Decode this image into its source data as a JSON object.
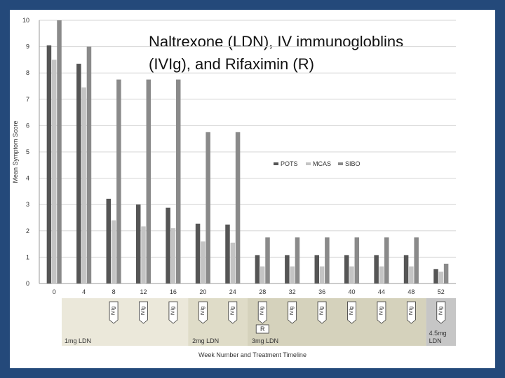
{
  "title_lines": [
    "Naltrexone (LDN), IV immunogloblins",
    "(IVIg), and Rifaximin (R)"
  ],
  "chart_data": {
    "type": "bar",
    "ylabel": "Mean Symptom Score",
    "xlabel": "Week Number and Treatment Timeline",
    "ylim": [
      0,
      10
    ],
    "yticks": [
      0,
      1,
      2,
      3,
      4,
      5,
      6,
      7,
      8,
      9,
      10
    ],
    "categories": [
      "0",
      "4",
      "8",
      "12",
      "16",
      "20",
      "24",
      "28",
      "32",
      "36",
      "40",
      "44",
      "48",
      "52"
    ],
    "legend_position": "right",
    "series": [
      {
        "name": "POTS",
        "color": "#555555",
        "values": [
          9.05,
          8.35,
          3.22,
          3.0,
          2.88,
          2.27,
          2.24,
          1.08,
          1.08,
          1.08,
          1.08,
          1.08,
          1.08,
          0.55
        ]
      },
      {
        "name": "MCAS",
        "color": "#c4c4c4",
        "values": [
          8.5,
          7.45,
          2.4,
          2.17,
          2.1,
          1.6,
          1.55,
          0.65,
          0.65,
          0.65,
          0.65,
          0.65,
          0.65,
          0.45
        ]
      },
      {
        "name": "SIBO",
        "color": "#8a8a8a",
        "values": [
          10.0,
          9.0,
          7.75,
          7.75,
          7.75,
          5.75,
          5.75,
          1.75,
          1.75,
          1.75,
          1.75,
          1.75,
          1.75,
          0.75
        ]
      }
    ],
    "ivig_label": "IVIg",
    "ivig_weeks": [
      "8",
      "12",
      "16",
      "20",
      "24",
      "28",
      "32",
      "36",
      "40",
      "44",
      "48",
      "52"
    ],
    "rifaximin_label": "R",
    "rifaximin_week": "28",
    "ldn_phases": [
      {
        "label": "1mg LDN",
        "start": "0",
        "end": "16",
        "color": "#ebe8da"
      },
      {
        "label": "2mg LDN",
        "start": "20",
        "end": "24",
        "color": "#dfdcc8"
      },
      {
        "label": "3mg LDN",
        "start": "28",
        "end": "48",
        "color": "#d5d2bc"
      },
      {
        "label": "4.5mg LDN",
        "start": "52",
        "end": "52",
        "color": "#c6c6c6"
      }
    ]
  }
}
